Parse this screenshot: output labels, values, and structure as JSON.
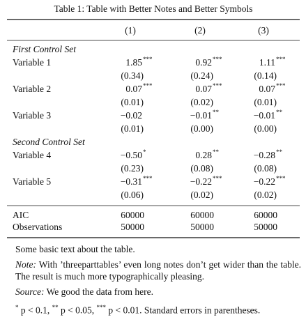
{
  "title": "Table 1: Table with Better Notes and Better Symbols",
  "table": {
    "columns": [
      "(1)",
      "(2)",
      "(3)"
    ],
    "groups": [
      {
        "label": "First Control Set",
        "rows": [
          {
            "label": "Variable 1",
            "coef": [
              {
                "value": "1.85",
                "stars": "***"
              },
              {
                "value": "0.92",
                "stars": "***"
              },
              {
                "value": "1.11",
                "stars": "***"
              }
            ],
            "se": [
              "(0.34)",
              "(0.24)",
              "(0.14)"
            ]
          },
          {
            "label": "Variable 2",
            "coef": [
              {
                "value": "0.07",
                "stars": "***"
              },
              {
                "value": "0.07",
                "stars": "***"
              },
              {
                "value": "0.07",
                "stars": "***"
              }
            ],
            "se": [
              "(0.01)",
              "(0.02)",
              "(0.01)"
            ]
          },
          {
            "label": "Variable 3",
            "coef": [
              {
                "value": "−0.02"
              },
              {
                "value": "−0.01",
                "stars": "**"
              },
              {
                "value": "−0.01",
                "stars": "**"
              }
            ],
            "se": [
              "(0.01)",
              "(0.00)",
              "(0.00)"
            ]
          }
        ]
      },
      {
        "label": "Second Control Set",
        "rows": [
          {
            "label": "Variable 4",
            "coef": [
              {
                "value": "−0.50",
                "stars": "*"
              },
              {
                "value": "0.28",
                "stars": "**"
              },
              {
                "value": "−0.28",
                "stars": "**"
              }
            ],
            "se": [
              "(0.23)",
              "(0.08)",
              "(0.08)"
            ]
          },
          {
            "label": "Variable 5",
            "coef": [
              {
                "value": "−0.31",
                "stars": "***"
              },
              {
                "value": "−0.22",
                "stars": "***"
              },
              {
                "value": "−0.22",
                "stars": "***"
              }
            ],
            "se": [
              "(0.06)",
              "(0.02)",
              "(0.02)"
            ]
          }
        ]
      }
    ],
    "stats": [
      {
        "label": "AIC",
        "values": [
          "60000",
          "60000",
          "60000"
        ]
      },
      {
        "label": "Observations",
        "values": [
          "50000",
          "50000",
          "50000"
        ]
      }
    ]
  },
  "notes": {
    "text": "Some basic text about the table.",
    "note": {
      "label": "Note:",
      "text": "With ’threeparttables’ even long notes don’t get wider than the table. The result is much more typographically pleasing."
    },
    "source": {
      "label": "Source:",
      "text": "We good the data from here."
    },
    "footnote": [
      {
        "stars": "*",
        "text": "p < 0.1,"
      },
      {
        "stars": "**",
        "text": "p < 0.05,"
      },
      {
        "stars": "***",
        "text": "p < 0.01. Standard errors in parentheses."
      }
    ]
  }
}
